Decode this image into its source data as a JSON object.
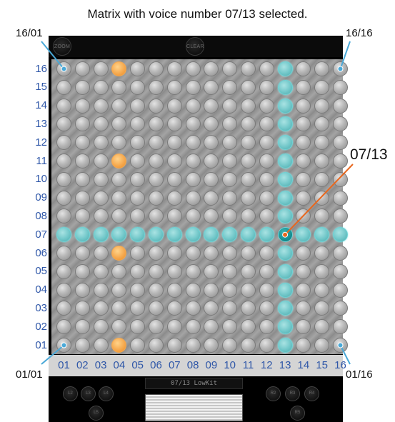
{
  "caption": "Matrix with voice number 07/13 selected.",
  "topbar": {
    "zoom_label": "ZOOM",
    "clear_label": "CLEAR"
  },
  "corner_callouts": {
    "top_left": "16/01",
    "top_right": "16/16",
    "bottom_left": "01/01",
    "bottom_right": "01/16"
  },
  "selected_callout": "07/13",
  "matrix": {
    "rows": 16,
    "cols": 16,
    "selected_row": 7,
    "selected_col": 13,
    "active_cells": [
      [
        16,
        4
      ],
      [
        11,
        4
      ],
      [
        6,
        4
      ],
      [
        1,
        4
      ]
    ]
  },
  "row_labels": [
    "16",
    "15",
    "14",
    "13",
    "12",
    "11",
    "10",
    "09",
    "08",
    "07",
    "06",
    "05",
    "04",
    "03",
    "02",
    "01"
  ],
  "col_labels": [
    "01",
    "02",
    "03",
    "04",
    "05",
    "06",
    "07",
    "08",
    "09",
    "10",
    "11",
    "12",
    "13",
    "14",
    "15",
    "16"
  ],
  "display": {
    "text": "07/13 LowKit"
  },
  "bottom_buttons": {
    "left": [
      "L2",
      "L3",
      "L4",
      "L5"
    ],
    "right": [
      "R2",
      "R3",
      "R4",
      "R5"
    ]
  },
  "colors": {
    "selected": "#71c7c9",
    "active": "#f5a64a",
    "label": "#2f57a8",
    "callout_line": "#4aa9d8",
    "selected_line": "#e8671e"
  }
}
